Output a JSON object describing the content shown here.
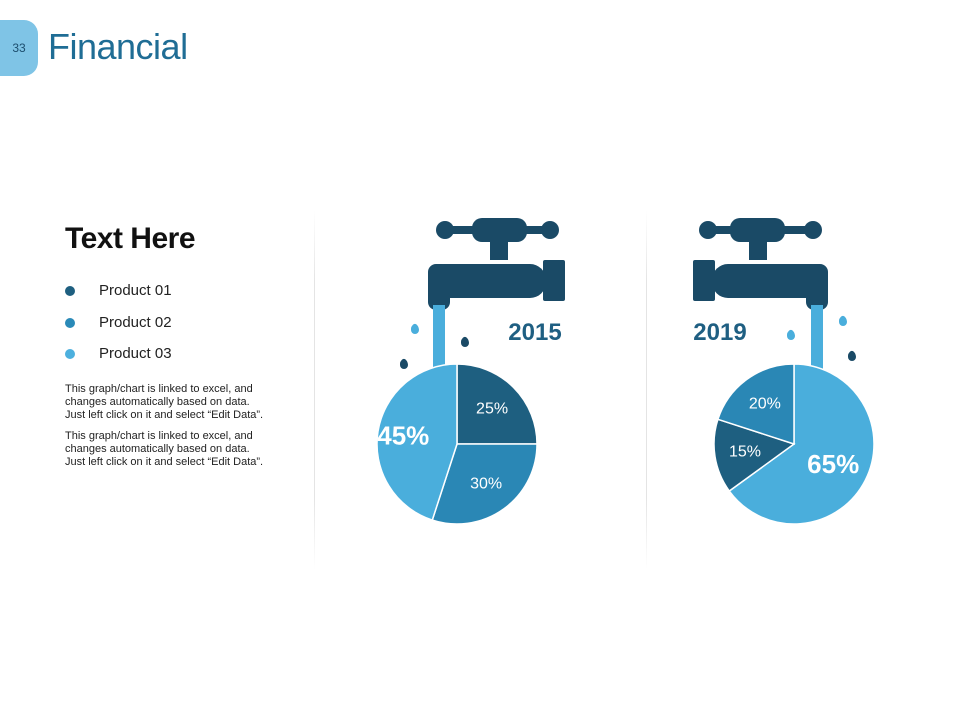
{
  "slide": {
    "page_number": "33",
    "title": "Financial"
  },
  "left_panel": {
    "heading": "Text Here",
    "legend": [
      {
        "label": "Product 01",
        "color": "#1e5f80"
      },
      {
        "label": "Product 02",
        "color": "#2a8ab8"
      },
      {
        "label": "Product 03",
        "color": "#4db0de"
      }
    ],
    "descriptions": [
      "This graph/chart is linked to excel, and changes automatically based on data. Just left click on it and select “Edit Data”.",
      "This graph/chart is linked to excel, and changes automatically based on data. Just left click on it and select “Edit Data”."
    ]
  },
  "colors": {
    "faucet": "#1a4a66",
    "water": "#4aaedc"
  },
  "chart_data": [
    {
      "type": "pie",
      "title": "2015",
      "slices": [
        {
          "label": "25%",
          "value": 25,
          "color": "#1e5f80"
        },
        {
          "label": "30%",
          "value": 30,
          "color": "#2a87b5"
        },
        {
          "label": "45%",
          "value": 45,
          "color": "#4aaedc"
        }
      ]
    },
    {
      "type": "pie",
      "title": "2019",
      "slices": [
        {
          "label": "65%",
          "value": 65,
          "color": "#4aaedc"
        },
        {
          "label": "15%",
          "value": 15,
          "color": "#1e5f80"
        },
        {
          "label": "20%",
          "value": 20,
          "color": "#2a87b5"
        }
      ]
    }
  ]
}
